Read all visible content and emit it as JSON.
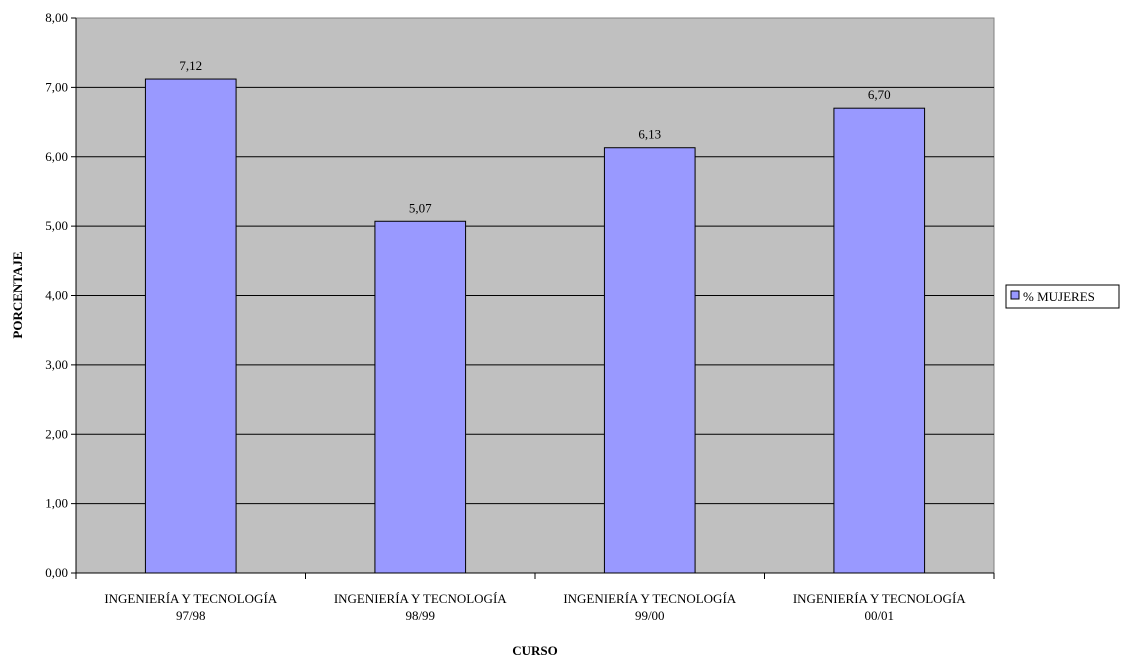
{
  "chart_data": {
    "type": "bar",
    "categories": [
      [
        "INGENIERÍA Y TECNOLOGÍA",
        "97/98"
      ],
      [
        "INGENIERÍA Y TECNOLOGÍA",
        "98/99"
      ],
      [
        "INGENIERÍA Y TECNOLOGÍA",
        "99/00"
      ],
      [
        "INGENIERÍA Y TECNOLOGÍA",
        "00/01"
      ]
    ],
    "series": [
      {
        "name": "% MUJERES",
        "values": [
          7.12,
          5.07,
          6.13,
          6.7
        ],
        "value_labels": [
          "7,12",
          "5,07",
          "6,13",
          "6,70"
        ],
        "color": "#9999ff"
      }
    ],
    "xlabel": "CURSO",
    "ylabel": "PORCENTAJE",
    "ylim": [
      0,
      8
    ],
    "yticks": [
      "0,00",
      "1,00",
      "2,00",
      "3,00",
      "4,00",
      "5,00",
      "6,00",
      "7,00",
      "8,00"
    ],
    "grid": true,
    "plot_background": "#c0c0c0",
    "legend_position": "right"
  }
}
